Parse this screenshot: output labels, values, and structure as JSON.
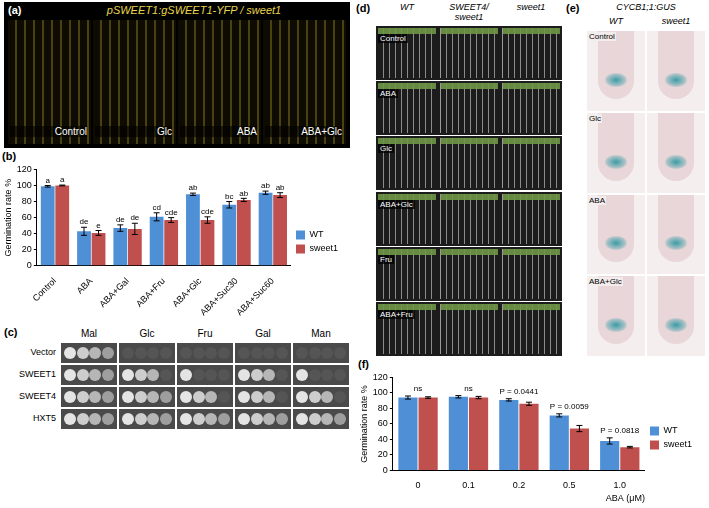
{
  "panels": {
    "a": {
      "letter": "(a)",
      "title": "pSWEET1:gSWEET1-YFP / sweet1",
      "images": [
        "Control",
        "Glc",
        "ABA",
        "ABA+Glc"
      ]
    },
    "c": {
      "letter": "(c)",
      "columns": [
        "Mal",
        "Glc",
        "Fru",
        "Gal",
        "Man"
      ],
      "rows": [
        {
          "label": "Vector",
          "growth": [
            4,
            0,
            0,
            0,
            0
          ]
        },
        {
          "label": "SWEET1",
          "growth": [
            4,
            3,
            1,
            3,
            1
          ]
        },
        {
          "label": "SWEET4",
          "growth": [
            4,
            4,
            3,
            3,
            3
          ]
        },
        {
          "label": "HXT5",
          "growth": [
            4,
            4,
            4,
            4,
            4
          ]
        }
      ]
    },
    "d": {
      "letter": "(d)",
      "columns": [
        "WT",
        "SWEET4/sweet1",
        "sweet1"
      ],
      "rows": [
        "Control",
        "ABA",
        "Glc",
        "ABA+Glc",
        "Fru",
        "ABA+Fru"
      ]
    },
    "e": {
      "letter": "(e)",
      "title": "CYCB1;1:GUS",
      "columns": [
        "WT",
        "sweet1"
      ],
      "rows": [
        "Control",
        "Glc",
        "ABA",
        "ABA+Glc"
      ]
    }
  },
  "chart_data": [
    {
      "panel": "(b)",
      "type": "bar",
      "y_label": "Germination rate %",
      "categories": [
        "Control",
        "ABA",
        "ABA+Gal",
        "ABA+Fru",
        "ABA+Glc",
        "ABA+Suc30",
        "ABA+Suc60"
      ],
      "series": [
        {
          "name": "WT",
          "color": "#4f8fd6",
          "values": [
            99,
            43,
            47,
            61,
            89,
            76,
            91
          ],
          "errors": [
            1,
            5,
            4,
            5,
            1.5,
            4,
            2
          ],
          "letters": [
            "a",
            "de",
            "de",
            "cd",
            "ab",
            "bc",
            "ab"
          ]
        },
        {
          "name": "sweet1",
          "color": "#c0504d",
          "values": [
            100,
            41,
            46,
            57,
            57,
            82,
            88
          ],
          "errors": [
            0.5,
            3,
            7,
            3,
            4,
            2,
            3
          ],
          "letters": [
            "a",
            "e",
            "de",
            "cde",
            "cde",
            "ab",
            "ab"
          ]
        }
      ],
      "ylim": [
        0,
        120
      ],
      "yticks": [
        0,
        20,
        40,
        60,
        80,
        100,
        120
      ],
      "grid": false,
      "legend": "right"
    },
    {
      "panel": "(f)",
      "type": "bar",
      "y_label": "Germination rate %",
      "x_label": "ABA (μM)",
      "categories": [
        "0",
        "0.1",
        "0.2",
        "0.5",
        "1.0"
      ],
      "series": [
        {
          "name": "WT",
          "color": "#4f8fd6",
          "values": [
            94,
            95,
            91,
            71,
            38
          ],
          "errors": [
            2,
            1.5,
            1.5,
            2,
            4
          ]
        },
        {
          "name": "sweet1",
          "color": "#c0504d",
          "values": [
            94,
            94,
            86,
            54,
            30
          ],
          "errors": [
            1,
            1.5,
            2,
            4,
            1
          ]
        }
      ],
      "annotations": [
        "ns",
        "ns",
        "P = 0.0441",
        "P = 0.0059",
        "P = 0.0818"
      ],
      "ylim": [
        0,
        120
      ],
      "yticks": [
        0,
        20,
        40,
        60,
        80,
        100,
        120
      ],
      "grid": false,
      "legend": "right"
    }
  ]
}
